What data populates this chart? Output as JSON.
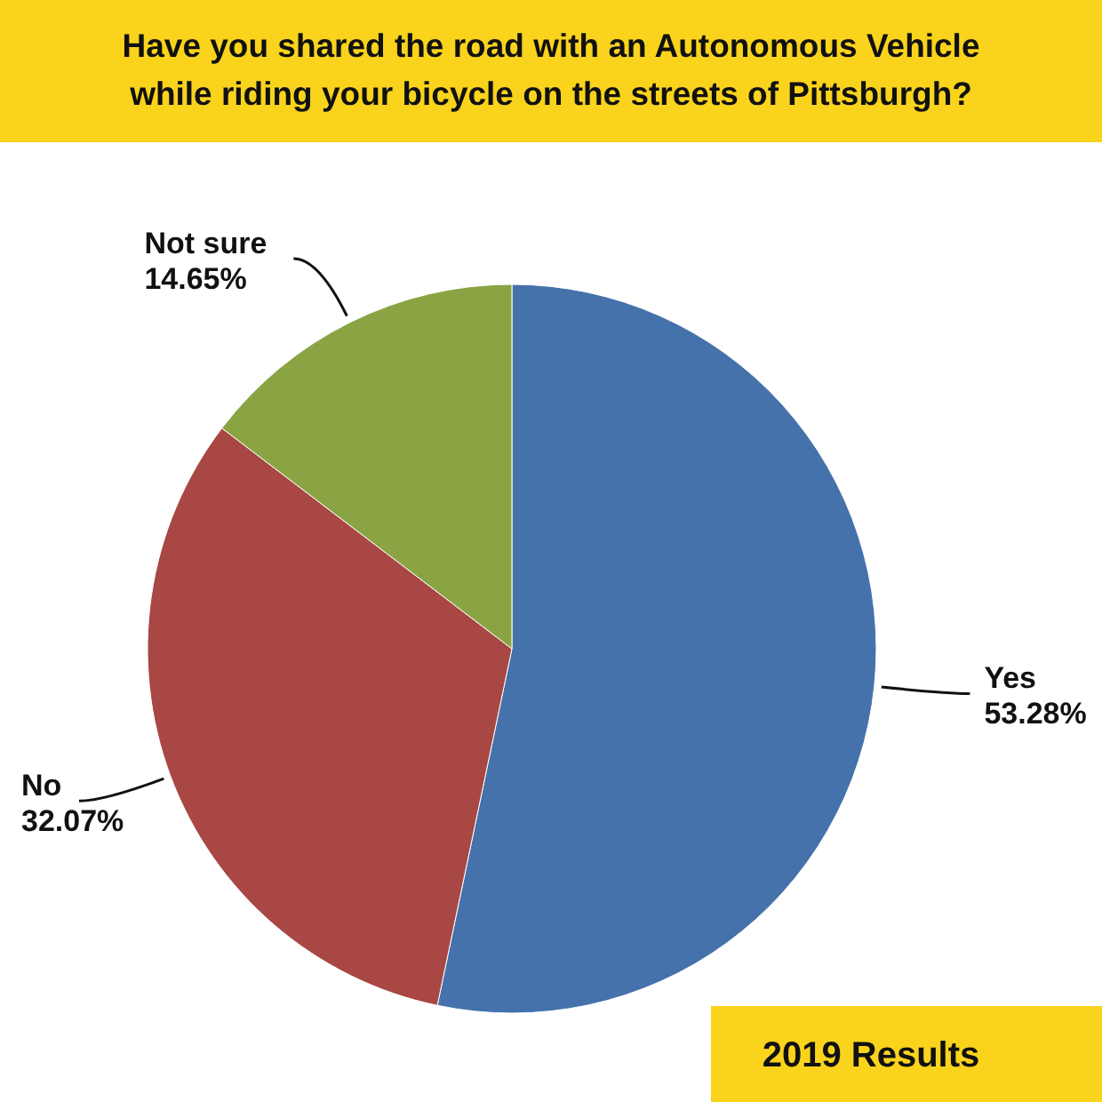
{
  "chart_data": {
    "type": "pie",
    "title": "Have you shared the road with an Autonomous Vehicle while riding your bicycle on the streets of Pittsburgh?",
    "categories": [
      "Yes",
      "No",
      "Not sure"
    ],
    "values": [
      53.28,
      32.07,
      14.65
    ],
    "colors": [
      "#4672ab",
      "#a84743",
      "#8aa444"
    ],
    "value_labels": [
      "53.28%",
      "32.07%",
      "14.65%"
    ],
    "annotations": [
      "2019 Results"
    ]
  }
}
